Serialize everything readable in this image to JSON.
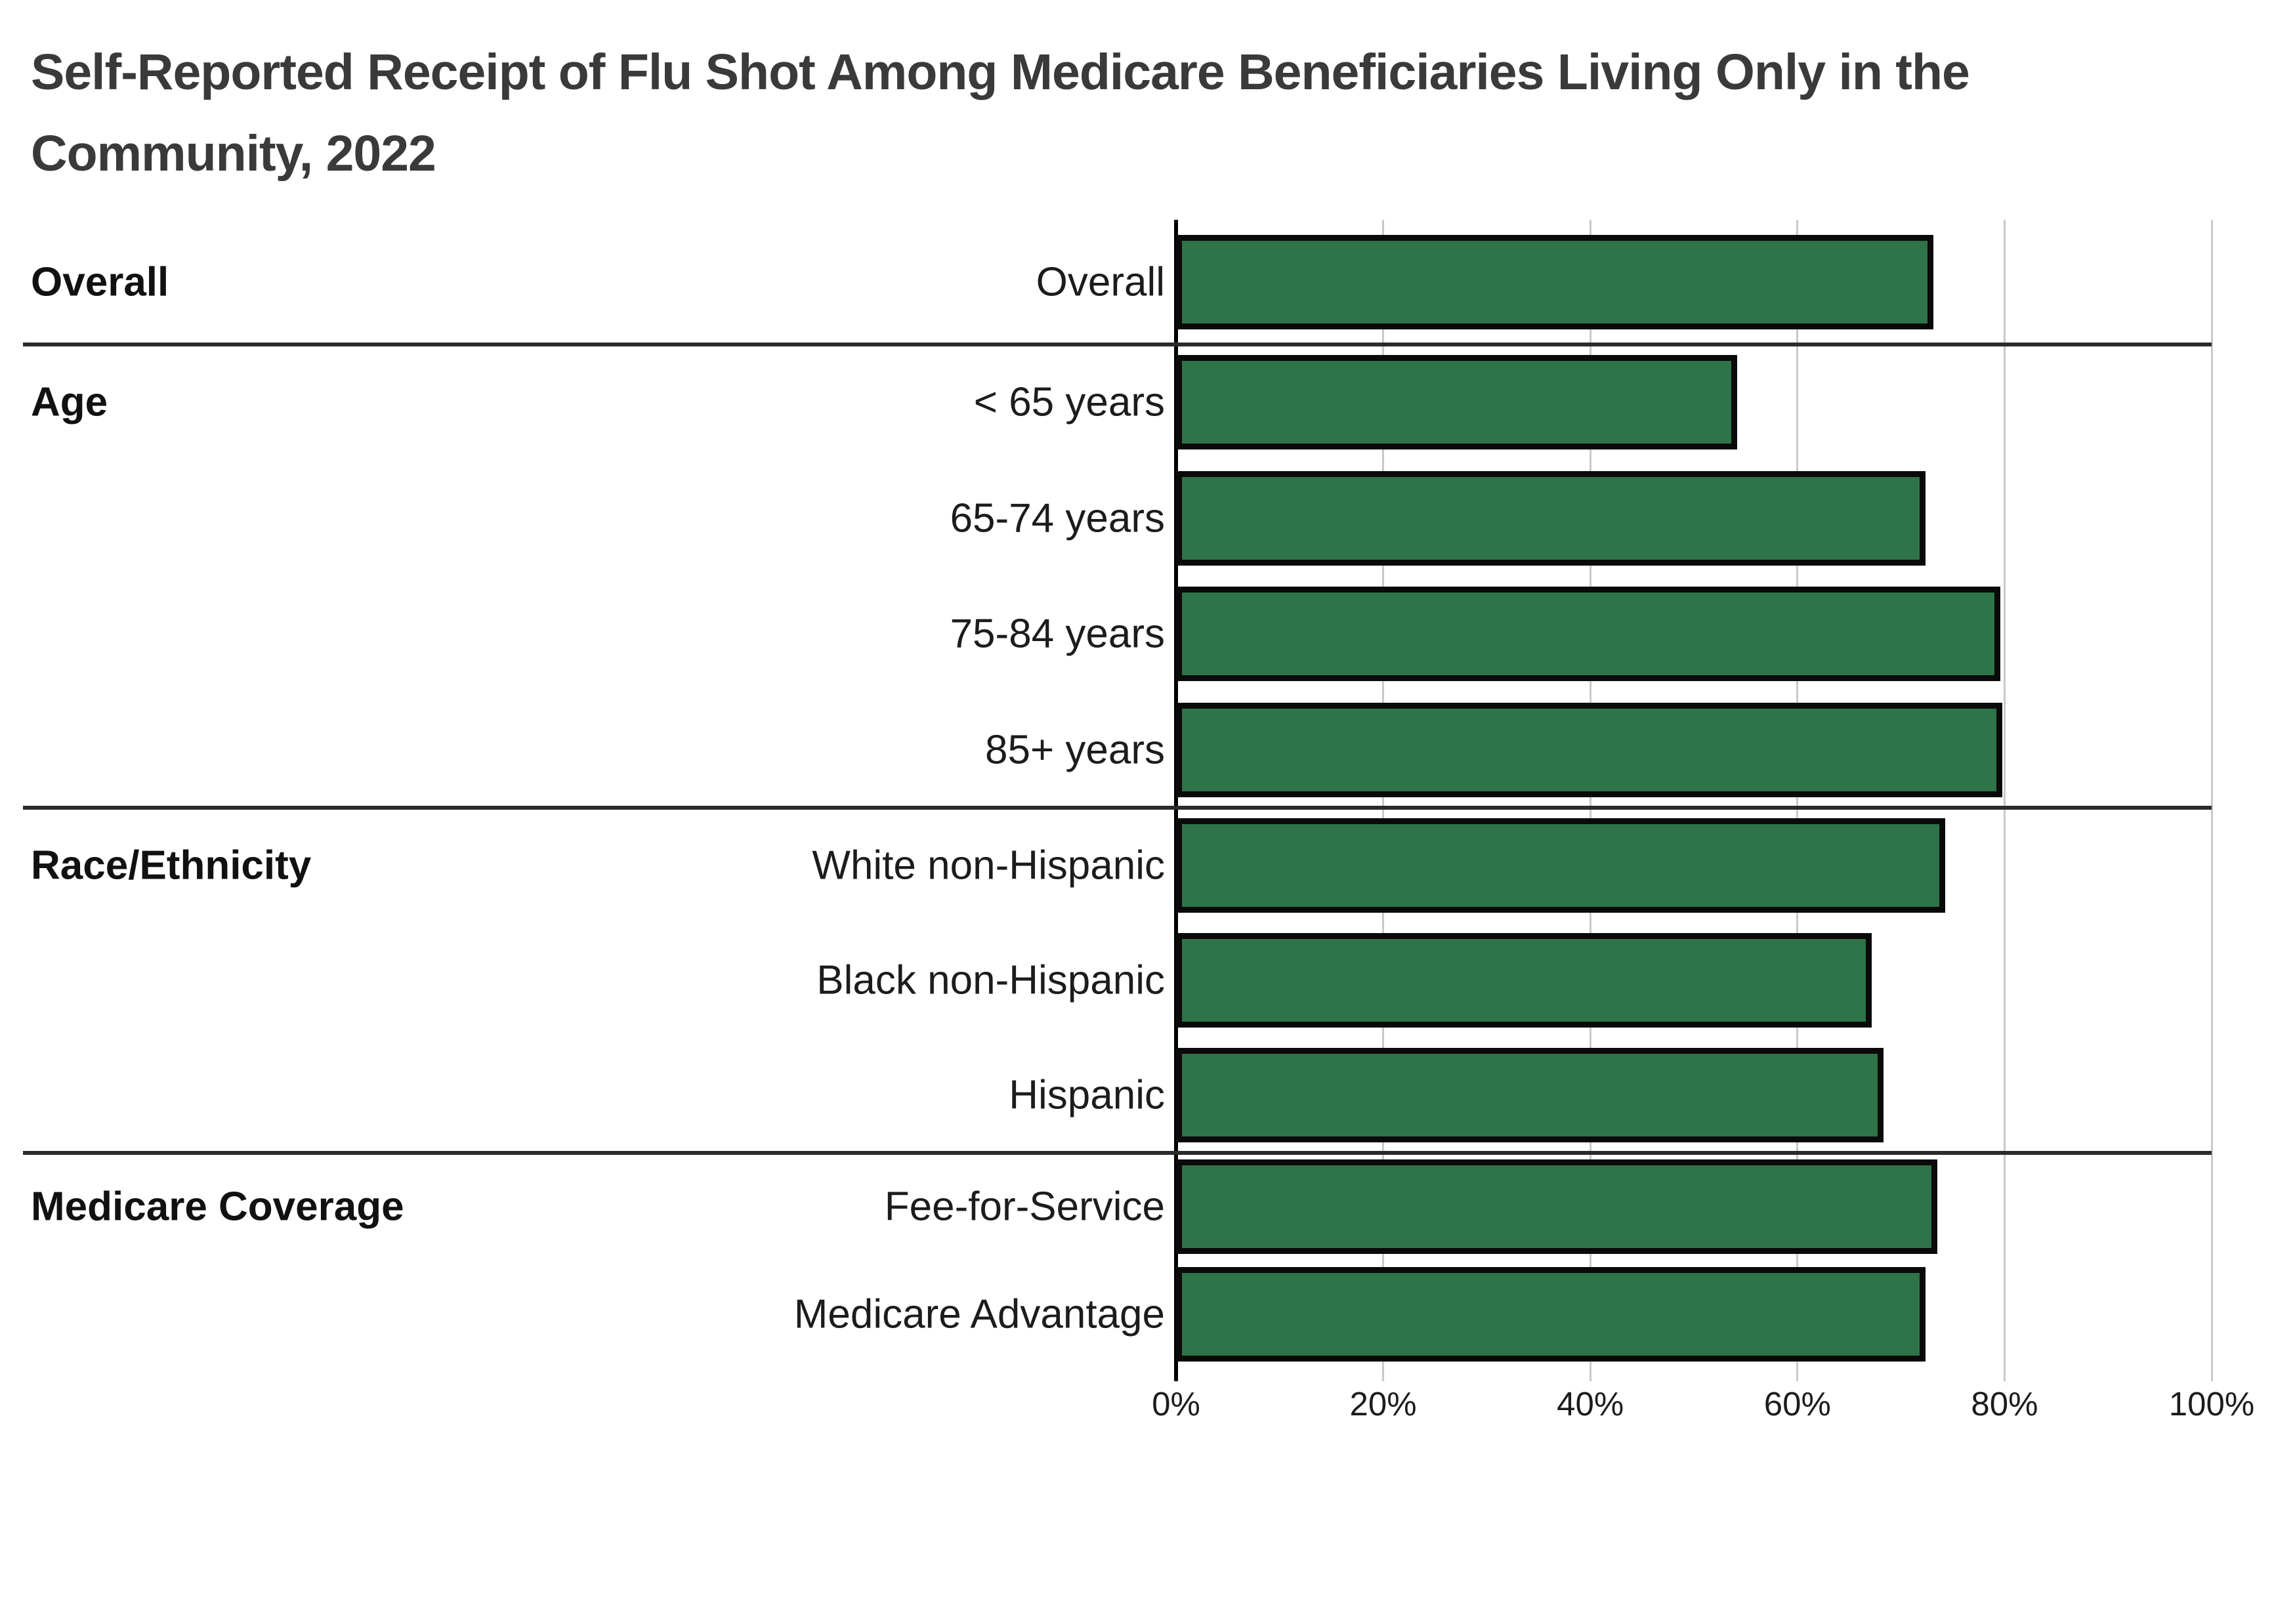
{
  "title_line1": "Self-Reported Receipt of Flu Shot Among Medicare Beneficiaries Living Only in the",
  "title_line2": "Community, 2022",
  "chart_data": {
    "type": "bar",
    "orientation": "horizontal",
    "title": "Self-Reported Receipt of Flu Shot Among Medicare Beneficiaries Living Only in the Community, 2022",
    "value_unit": "%",
    "xlabel": "",
    "ylabel": "",
    "xlim": [
      0,
      100
    ],
    "grid": "vertical",
    "legend": "none",
    "x_axis_tick_labels": [
      "0%",
      "20%",
      "40%",
      "60%",
      "80%",
      "100%"
    ],
    "x_axis_tick_values": [
      0,
      20,
      40,
      60,
      80,
      100
    ],
    "bar_color": "#2F7348",
    "bar_border_color": "#0a0a0a",
    "sections": [
      {
        "label": "Overall",
        "rows": [
          {
            "category": "Overall",
            "value": 73.1
          }
        ]
      },
      {
        "label": "Age",
        "rows": [
          {
            "category": "< 65 years",
            "value": 54.2
          },
          {
            "category": "65-74 years",
            "value": 72.4
          },
          {
            "category": "75-84 years",
            "value": 79.6
          },
          {
            "category": "85+ years",
            "value": 79.8
          }
        ]
      },
      {
        "label": "Race/Ethnicity",
        "rows": [
          {
            "category": "White non-Hispanic",
            "value": 74.3
          },
          {
            "category": "Black non-Hispanic",
            "value": 67.2
          },
          {
            "category": "Hispanic",
            "value": 68.3
          }
        ]
      },
      {
        "label": "Medicare Coverage",
        "rows": [
          {
            "category": "Fee-for-Service",
            "value": 73.5
          },
          {
            "category": "Medicare Advantage",
            "value": 72.4
          }
        ]
      }
    ]
  }
}
